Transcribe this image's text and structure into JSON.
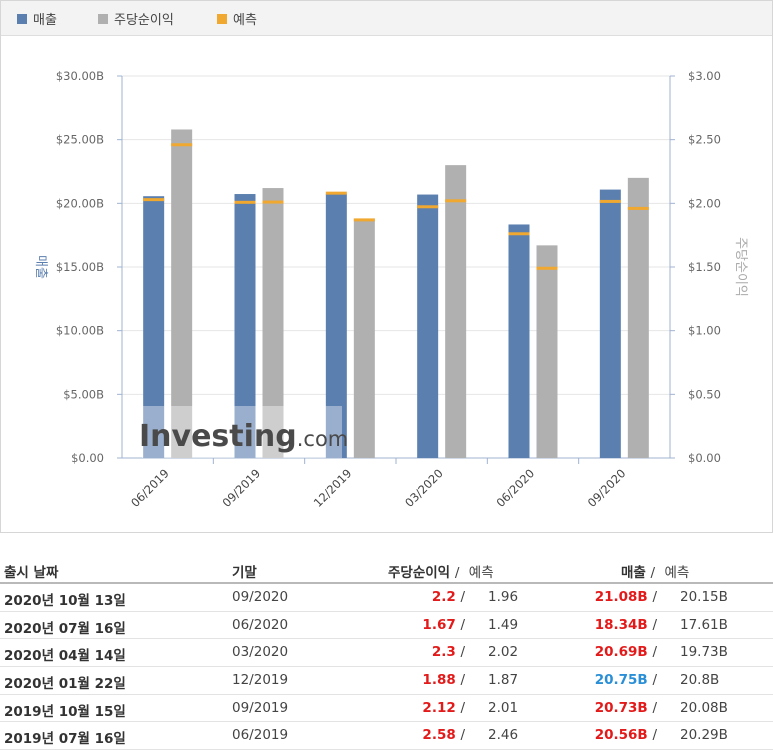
{
  "legend": {
    "revenue": {
      "label": "매출",
      "color": "#5b7faf"
    },
    "eps": {
      "label": "주당순이익",
      "color": "#b0b0b0"
    },
    "forecast": {
      "label": "예측",
      "color": "#f0a830"
    }
  },
  "chart_data": {
    "type": "bar",
    "categories": [
      "06/2019",
      "09/2019",
      "12/2019",
      "03/2020",
      "06/2020",
      "09/2020"
    ],
    "series": [
      {
        "name": "매출",
        "axis": "left",
        "values": [
          20.56,
          20.73,
          20.75,
          20.69,
          18.34,
          21.08
        ],
        "forecast": [
          20.29,
          20.08,
          20.8,
          19.73,
          17.61,
          20.15
        ]
      },
      {
        "name": "주당순이익",
        "axis": "right",
        "values": [
          2.58,
          2.12,
          1.88,
          2.3,
          1.67,
          2.2
        ],
        "forecast": [
          2.46,
          2.01,
          1.87,
          2.02,
          1.49,
          1.96
        ]
      }
    ],
    "y_left": {
      "label": "매출",
      "ticks": [
        "$0.00",
        "$5.00B",
        "$10.00B",
        "$15.00B",
        "$20.00B",
        "$25.00B",
        "$30.00B"
      ],
      "ylim": [
        0,
        30
      ]
    },
    "y_right": {
      "label": "주당순이익",
      "ticks": [
        "$0.00",
        "$0.50",
        "$1.00",
        "$1.50",
        "$2.00",
        "$2.50",
        "$3.00"
      ],
      "ylim": [
        0,
        3
      ]
    },
    "grid": true
  },
  "watermark": {
    "brand": "Investing",
    "suffix": ".com"
  },
  "table": {
    "headers": {
      "date": "출시 날짜",
      "period": "기말",
      "eps": "주당순이익",
      "eps_sep": "/",
      "eps_forecast": "예측",
      "revenue": "매출",
      "revenue_sep": "/",
      "revenue_forecast": "예측"
    },
    "rows": [
      {
        "date": "2020년 10월 13일",
        "period": "09/2020",
        "eps": "2.2",
        "eps_color": "red",
        "eps_forecast": "1.96",
        "revenue": "21.08B",
        "revenue_color": "red",
        "revenue_forecast": "20.15B"
      },
      {
        "date": "2020년 07월 16일",
        "period": "06/2020",
        "eps": "1.67",
        "eps_color": "red",
        "eps_forecast": "1.49",
        "revenue": "18.34B",
        "revenue_color": "red",
        "revenue_forecast": "17.61B"
      },
      {
        "date": "2020년 04월 14일",
        "period": "03/2020",
        "eps": "2.3",
        "eps_color": "red",
        "eps_forecast": "2.02",
        "revenue": "20.69B",
        "revenue_color": "red",
        "revenue_forecast": "19.73B"
      },
      {
        "date": "2020년 01월 22일",
        "period": "12/2019",
        "eps": "1.88",
        "eps_color": "red",
        "eps_forecast": "1.87",
        "revenue": "20.75B",
        "revenue_color": "blue",
        "revenue_forecast": "20.8B"
      },
      {
        "date": "2019년 10월 15일",
        "period": "09/2019",
        "eps": "2.12",
        "eps_color": "red",
        "eps_forecast": "2.01",
        "revenue": "20.73B",
        "revenue_color": "red",
        "revenue_forecast": "20.08B"
      },
      {
        "date": "2019년 07월 16일",
        "period": "06/2019",
        "eps": "2.58",
        "eps_color": "red",
        "eps_forecast": "2.46",
        "revenue": "20.56B",
        "revenue_color": "red",
        "revenue_forecast": "20.29B"
      }
    ]
  }
}
